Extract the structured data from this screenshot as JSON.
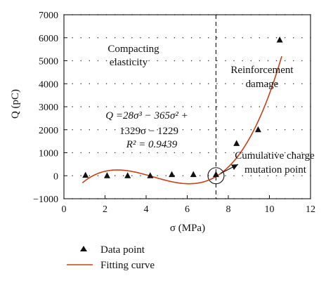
{
  "chart_data": {
    "type": "scatter",
    "xlabel": "σ (MPa)",
    "ylabel": "Q (pC)",
    "xlim": [
      0,
      12
    ],
    "ylim": [
      -1000,
      7000
    ],
    "x_ticks": [
      "0",
      "2",
      "4",
      "6",
      "8",
      "10",
      "12"
    ],
    "y_ticks": [
      "−1000",
      "0",
      "1000",
      "2000",
      "3000",
      "4000",
      "5000",
      "6000",
      "7000"
    ],
    "grid": "dotted",
    "series": [
      {
        "name": "Data point",
        "marker": "triangle",
        "color": "#111111",
        "x": [
          1.05,
          2.1,
          3.1,
          4.2,
          5.25,
          6.3,
          7.4,
          8.4,
          9.45,
          10.5
        ],
        "y": [
          20,
          0,
          0,
          0,
          50,
          50,
          50,
          1400,
          2000,
          5900
        ]
      },
      {
        "name": "Fitting curve",
        "type": "line",
        "color": "#c8401a",
        "coefficients": [
          28,
          -365,
          1329,
          -1229
        ],
        "x_range": [
          0.9,
          10.6
        ]
      }
    ],
    "annotations": [
      "Compacting",
      "elasticity",
      "Reinforcement",
      "damage",
      "Q =28σ³ − 365σ² +",
      "1329σ − 1229",
      "R² = 0.9439",
      "Cumulative charge",
      "mutation point"
    ],
    "reference_line_x": 7.4,
    "marked_point": {
      "x": 7.4,
      "y": 0
    },
    "legend": {
      "position": "bottom",
      "items": [
        {
          "label": "Data point",
          "symbol": "triangle"
        },
        {
          "label": "Fitting curve",
          "symbol": "line",
          "color": "#c8401a"
        }
      ]
    }
  }
}
